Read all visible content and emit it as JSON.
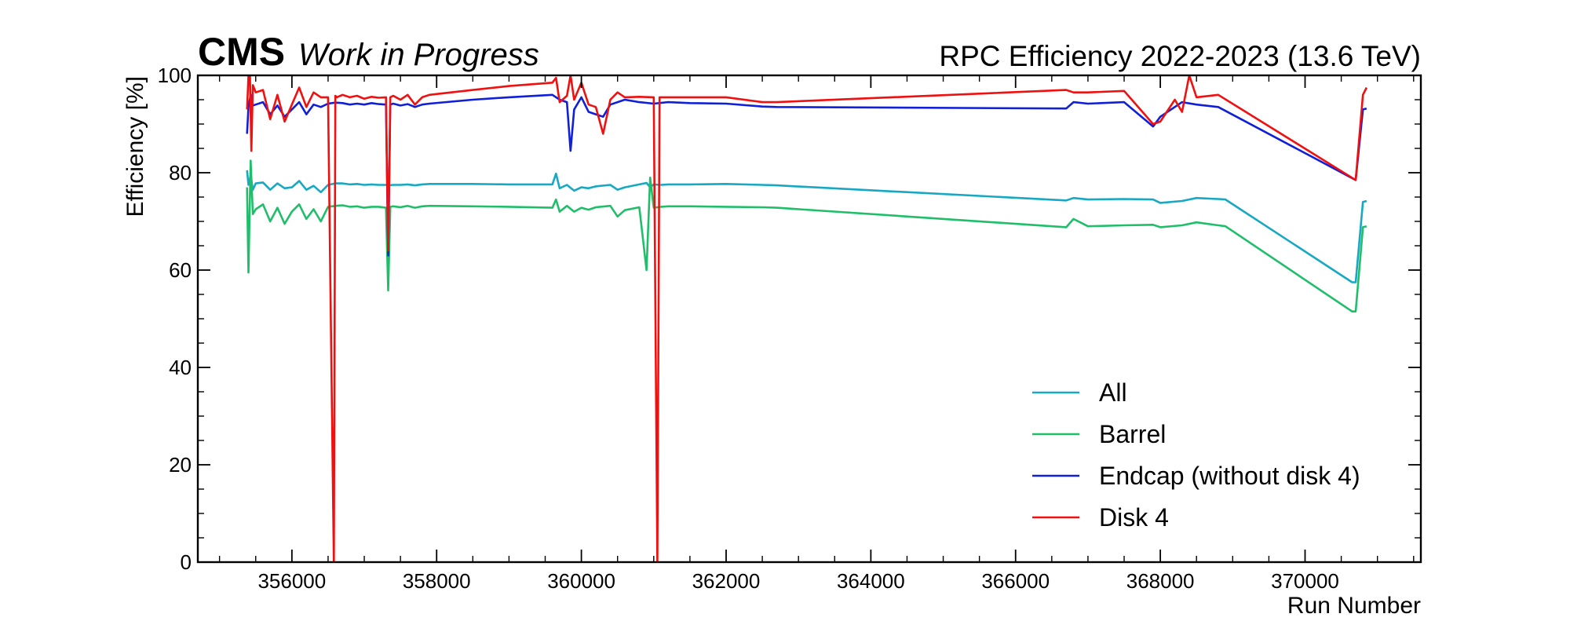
{
  "header": {
    "experiment": "CMS",
    "status": "Work in Progress",
    "title": "RPC Efficiency 2022-2023 (13.6 TeV)"
  },
  "chart_data": {
    "type": "line",
    "title": "RPC Efficiency 2022-2023 (13.6 TeV)",
    "xlabel": "Run Number",
    "ylabel": "Efficiency [%]",
    "xlim": [
      354700,
      371600
    ],
    "ylim": [
      0,
      100
    ],
    "x_ticks": [
      356000,
      358000,
      360000,
      362000,
      364000,
      366000,
      368000,
      370000
    ],
    "y_ticks": [
      0,
      20,
      40,
      60,
      80,
      100
    ],
    "grid": false,
    "legend_position": "bottom-right",
    "series": [
      {
        "name": "All",
        "color": "#17a8c4",
        "x": [
          355380,
          355400,
          355430,
          355460,
          355500,
          355600,
          355700,
          355800,
          355900,
          356000,
          356100,
          356200,
          356300,
          356400,
          356500,
          356600,
          356700,
          356800,
          356900,
          357000,
          357100,
          357200,
          357300,
          357330,
          357400,
          357500,
          357600,
          357700,
          357800,
          357900,
          358500,
          359000,
          359600,
          359650,
          359700,
          359800,
          359900,
          360000,
          360100,
          360200,
          360400,
          360500,
          360600,
          360800,
          360900,
          360950,
          361000,
          361100,
          361200,
          361500,
          362000,
          362500,
          362700,
          366700,
          366800,
          367000,
          367500,
          367900,
          368000,
          368300,
          368500,
          368800,
          368900,
          370650,
          370700,
          370800,
          370850
        ],
        "values": [
          80.5,
          77.5,
          79.5,
          76.5,
          77.8,
          78.0,
          76.5,
          77.8,
          76.8,
          77.0,
          78.3,
          76.5,
          77.3,
          76.0,
          77.5,
          77.8,
          77.8,
          77.6,
          77.7,
          77.5,
          77.6,
          77.5,
          77.5,
          77.4,
          77.5,
          77.5,
          77.6,
          77.4,
          77.6,
          77.7,
          77.7,
          77.6,
          77.6,
          79.8,
          76.8,
          77.5,
          76.3,
          77.0,
          76.8,
          77.2,
          77.5,
          76.5,
          77.0,
          77.6,
          77.9,
          77.0,
          77.6,
          77.5,
          77.6,
          77.6,
          77.7,
          77.5,
          77.4,
          74.3,
          74.8,
          74.5,
          74.6,
          74.5,
          73.8,
          74.2,
          74.8,
          74.6,
          74.5,
          57.5,
          57.5,
          74.0,
          74.2
        ]
      },
      {
        "name": "Barrel",
        "color": "#1fbf6a",
        "x": [
          355380,
          355400,
          355430,
          355460,
          355500,
          355600,
          355700,
          355800,
          355900,
          356000,
          356100,
          356200,
          356300,
          356400,
          356500,
          356600,
          356700,
          356800,
          356900,
          357000,
          357100,
          357200,
          357300,
          357330,
          357360,
          357400,
          357500,
          357600,
          357700,
          357800,
          357900,
          358500,
          359000,
          359600,
          359650,
          359700,
          359800,
          359900,
          360000,
          360100,
          360200,
          360400,
          360500,
          360600,
          360800,
          360900,
          360950,
          361000,
          361100,
          361200,
          361500,
          362000,
          362500,
          362700,
          366700,
          366800,
          367000,
          367500,
          367900,
          368000,
          368300,
          368500,
          368800,
          368900,
          370650,
          370700,
          370800,
          370850
        ],
        "values": [
          77.0,
          59.5,
          82.5,
          71.5,
          72.5,
          73.5,
          70.0,
          72.8,
          69.5,
          72.0,
          73.5,
          70.5,
          72.5,
          70.0,
          73.0,
          73.2,
          73.3,
          73.0,
          73.1,
          72.8,
          73.0,
          73.0,
          72.8,
          55.8,
          73.0,
          73.1,
          72.9,
          73.2,
          72.8,
          73.1,
          73.2,
          73.1,
          73.0,
          72.8,
          74.5,
          72.0,
          73.2,
          72.0,
          72.8,
          72.4,
          72.9,
          73.2,
          71.0,
          72.3,
          72.9,
          60.0,
          79.0,
          72.8,
          73.0,
          73.1,
          73.1,
          73.0,
          72.9,
          72.8,
          68.8,
          70.5,
          69.0,
          69.2,
          69.3,
          68.8,
          69.2,
          69.8,
          69.2,
          69.0,
          51.5,
          51.5,
          68.8,
          69.0
        ]
      },
      {
        "name": "Endcap (without disk 4)",
        "color": "#1020d8",
        "x": [
          355380,
          355400,
          355430,
          355460,
          355500,
          355600,
          355700,
          355800,
          355900,
          356000,
          356100,
          356200,
          356300,
          356400,
          356500,
          356600,
          356700,
          356800,
          356900,
          357000,
          357100,
          357200,
          357300,
          357330,
          357360,
          357400,
          357500,
          357600,
          357700,
          357800,
          357900,
          358500,
          359000,
          359600,
          359700,
          359800,
          359850,
          359900,
          360000,
          360100,
          360200,
          360300,
          360400,
          360500,
          360600,
          360800,
          361000,
          361200,
          361500,
          362000,
          362500,
          362700,
          366700,
          366800,
          367000,
          367500,
          367900,
          368000,
          368300,
          368500,
          368800,
          370700,
          370800,
          370850
        ],
        "values": [
          88.0,
          93.5,
          96.0,
          93.8,
          94.0,
          94.5,
          92.0,
          93.8,
          91.5,
          93.0,
          94.5,
          92.0,
          94.0,
          93.5,
          94.2,
          94.4,
          94.3,
          94.0,
          94.2,
          94.0,
          94.3,
          94.1,
          94.0,
          63.0,
          94.0,
          94.2,
          93.8,
          94.1,
          93.5,
          94.0,
          94.2,
          95.0,
          95.5,
          96.0,
          95.0,
          94.5,
          84.5,
          93.0,
          95.5,
          92.5,
          92.0,
          91.5,
          94.0,
          94.5,
          95.0,
          94.5,
          94.2,
          94.5,
          94.3,
          94.2,
          93.6,
          93.5,
          93.2,
          94.5,
          94.2,
          94.5,
          89.5,
          91.5,
          94.5,
          94.0,
          93.5,
          78.5,
          93.0,
          93.2
        ]
      },
      {
        "name": "Disk 4",
        "color": "#f01010",
        "x": [
          355380,
          355400,
          355420,
          355440,
          355460,
          355500,
          355600,
          355700,
          355800,
          355900,
          356000,
          356100,
          356200,
          356300,
          356400,
          356500,
          356580,
          356600,
          356620,
          356700,
          356800,
          356900,
          357000,
          357100,
          357200,
          357300,
          357330,
          357360,
          357400,
          357500,
          357600,
          357700,
          357800,
          357900,
          358500,
          359000,
          359600,
          359650,
          359700,
          359800,
          359850,
          359900,
          360000,
          360100,
          360200,
          360300,
          360400,
          360500,
          360600,
          360800,
          361000,
          361050,
          361080,
          361200,
          361500,
          362000,
          362500,
          362700,
          366700,
          366800,
          367000,
          367500,
          367900,
          368000,
          368200,
          368300,
          368400,
          368500,
          368800,
          370700,
          370800,
          370850
        ],
        "values": [
          93.0,
          99.8,
          100.0,
          84.5,
          98.0,
          96.5,
          97.0,
          91.0,
          96.0,
          90.5,
          94.0,
          97.5,
          93.5,
          96.5,
          95.5,
          95.5,
          0.0,
          95.8,
          95.5,
          96.0,
          95.5,
          95.8,
          95.2,
          95.6,
          95.4,
          95.5,
          64.0,
          95.5,
          95.8,
          95.0,
          96.0,
          94.0,
          95.5,
          96.0,
          97.0,
          97.8,
          98.5,
          99.5,
          94.5,
          95.8,
          100.0,
          95.0,
          98.5,
          94.0,
          93.5,
          88.0,
          95.0,
          96.5,
          95.5,
          95.6,
          95.5,
          0.0,
          95.5,
          95.5,
          95.5,
          95.5,
          94.5,
          94.5,
          97.0,
          96.5,
          96.5,
          96.8,
          90.0,
          90.5,
          95.0,
          92.5,
          100.0,
          95.5,
          96.0,
          78.5,
          96.0,
          97.5
        ]
      }
    ]
  }
}
